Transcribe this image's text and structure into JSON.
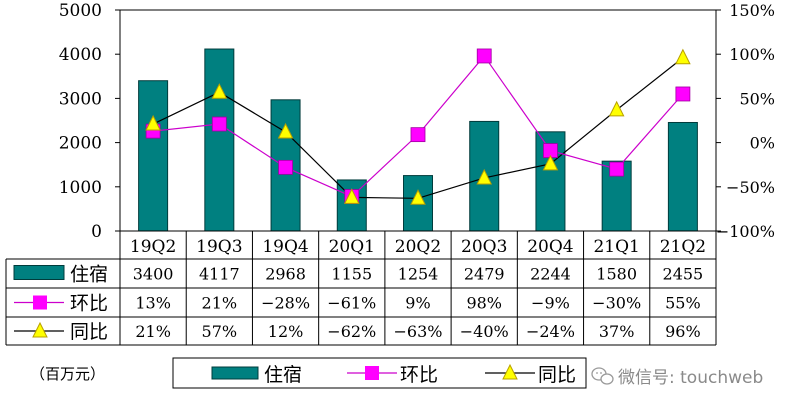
{
  "chart_data": {
    "type": "bar",
    "categories": [
      "19Q2",
      "19Q3",
      "19Q4",
      "20Q1",
      "20Q2",
      "20Q3",
      "20Q4",
      "21Q1",
      "21Q2"
    ],
    "series": [
      {
        "name": "住宿",
        "type": "bar",
        "axis": "left",
        "values": [
          3400,
          4117,
          2968,
          1155,
          1254,
          2479,
          2244,
          1580,
          2455
        ],
        "labels": [
          "3400",
          "4117",
          "2968",
          "1155",
          "1254",
          "2479",
          "2244",
          "1580",
          "2455"
        ]
      },
      {
        "name": "环比",
        "type": "line",
        "axis": "right",
        "marker": "square",
        "values": [
          13,
          21,
          -28,
          -61,
          9,
          98,
          -9,
          -30,
          55
        ],
        "labels": [
          "13%",
          "21%",
          "−28%",
          "−61%",
          "9%",
          "98%",
          "−9%",
          "−30%",
          "55%"
        ]
      },
      {
        "name": "同比",
        "type": "line",
        "axis": "right",
        "marker": "triangle",
        "values": [
          21,
          57,
          12,
          -62,
          -63,
          -40,
          -24,
          37,
          96
        ],
        "labels": [
          "21%",
          "57%",
          "12%",
          "−62%",
          "−63%",
          "−40%",
          "−24%",
          "37%",
          "96%"
        ]
      }
    ],
    "y_left": {
      "range": [
        0,
        5000
      ],
      "ticks": [
        "0",
        "1000",
        "2000",
        "3000",
        "4000",
        "5000"
      ]
    },
    "y_right": {
      "range": [
        -100,
        150
      ],
      "ticks": [
        "−100%",
        "−50%",
        "0%",
        "50%",
        "100%",
        "150%"
      ]
    },
    "unit_label": "（百万元）",
    "legend": {
      "position": "bottom",
      "items": [
        "住宿",
        "环比",
        "同比"
      ]
    },
    "colors": {
      "bar": "#008080",
      "bar_stroke": "#003c3c",
      "hb_line": "#cc00cc",
      "hb_marker": "#ff00ff",
      "tb_line": "#000000",
      "tb_marker": "#ffff00",
      "tb_marker_stroke": "#b8a000"
    },
    "grid": false
  },
  "watermark": {
    "icon": "wechat-icon",
    "text": "微信号: touchweb"
  }
}
